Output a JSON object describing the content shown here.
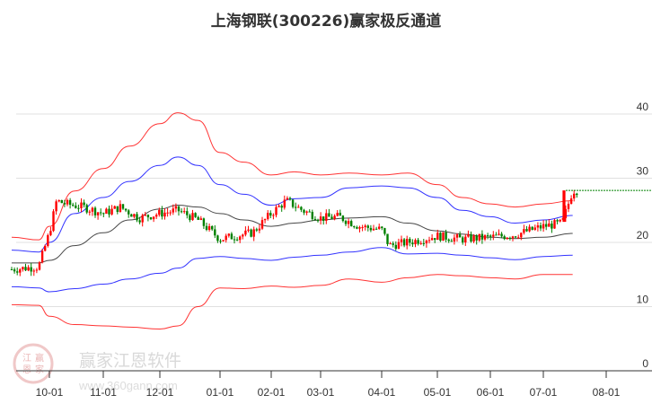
{
  "title": "上海钢联(300226)赢家极反通道",
  "watermark": {
    "brand": "赢家江恩软件",
    "url": "www.360gann.com",
    "seal": [
      "江",
      "赢",
      "恩",
      "家"
    ]
  },
  "colors": {
    "up": "#ff0000",
    "down": "#008000",
    "upper_outer": "#ff0000",
    "upper_inner": "#0000ff",
    "middle": "#333333",
    "lower_inner": "#0000ff",
    "lower_outer": "#ff0000",
    "grid": "#e0e0e0",
    "axis": "#333333",
    "last_price_line": "#008000"
  },
  "chart_data": {
    "type": "candlestick",
    "title": "上海钢联(300226)赢家极反通道",
    "xlabel": "",
    "ylabel": "",
    "ylim": [
      0,
      40
    ],
    "y_ticks": [
      0,
      10,
      20,
      30,
      40
    ],
    "x_tick_labels": [
      "10-01",
      "11-01",
      "12-01",
      "01-01",
      "02-01",
      "03-01",
      "04-01",
      "05-01",
      "06-01",
      "07-01",
      "08-01"
    ],
    "grid": true,
    "legend": "none",
    "last_price": 28.1,
    "series": [
      {
        "name": "upper_outer_band",
        "color": "#ff0000",
        "x": [
          "09-10",
          "09-25",
          "10-01",
          "10-15",
          "11-01",
          "11-15",
          "12-01",
          "12-10",
          "12-20",
          "01-01",
          "01-15",
          "02-01",
          "02-15",
          "03-01",
          "03-15",
          "04-01",
          "04-15",
          "05-01",
          "05-15",
          "06-01",
          "06-15",
          "07-01",
          "07-15"
        ],
        "values": [
          20.8,
          20.4,
          22.5,
          28.0,
          31.5,
          35.0,
          38.5,
          40.2,
          39.0,
          34.0,
          32.5,
          30.5,
          31.0,
          30.5,
          30.8,
          30.5,
          30.8,
          29.0,
          27.0,
          26.0,
          25.5,
          26.0,
          26.5
        ]
      },
      {
        "name": "upper_inner_band",
        "color": "#0000ff",
        "x": [
          "09-10",
          "09-25",
          "10-01",
          "10-15",
          "11-01",
          "11-15",
          "12-01",
          "12-10",
          "12-20",
          "01-01",
          "01-15",
          "02-01",
          "02-15",
          "03-01",
          "03-15",
          "04-01",
          "04-15",
          "05-01",
          "05-15",
          "06-01",
          "06-15",
          "07-01",
          "07-15"
        ],
        "values": [
          18.8,
          18.5,
          20.0,
          24.5,
          27.0,
          29.5,
          32.0,
          33.3,
          32.0,
          29.0,
          27.5,
          25.8,
          26.8,
          27.0,
          28.5,
          28.8,
          28.5,
          27.0,
          25.0,
          24.0,
          23.0,
          23.5,
          24.2
        ]
      },
      {
        "name": "middle_line",
        "color": "#333333",
        "x": [
          "09-10",
          "09-25",
          "10-01",
          "10-15",
          "11-01",
          "11-15",
          "12-01",
          "12-10",
          "12-20",
          "01-01",
          "01-15",
          "02-01",
          "02-15",
          "03-01",
          "03-15",
          "04-01",
          "04-15",
          "05-01",
          "05-15",
          "06-01",
          "06-15",
          "07-01",
          "07-15"
        ],
        "values": [
          16.8,
          16.8,
          17.2,
          19.5,
          21.5,
          23.5,
          25.2,
          25.8,
          25.5,
          24.5,
          23.5,
          22.5,
          23.0,
          23.5,
          23.8,
          24.0,
          23.0,
          21.8,
          21.3,
          20.8,
          20.6,
          20.8,
          21.4
        ]
      },
      {
        "name": "lower_inner_band",
        "color": "#0000ff",
        "x": [
          "09-10",
          "09-25",
          "10-01",
          "10-15",
          "11-01",
          "11-15",
          "12-01",
          "12-10",
          "12-20",
          "01-01",
          "01-15",
          "02-01",
          "02-15",
          "03-01",
          "03-15",
          "04-01",
          "04-15",
          "05-01",
          "05-15",
          "06-01",
          "06-15",
          "07-01",
          "07-15"
        ],
        "values": [
          13.1,
          12.9,
          12.3,
          12.8,
          13.5,
          14.3,
          15.2,
          16.0,
          17.5,
          17.8,
          17.5,
          17.2,
          17.7,
          18.0,
          18.5,
          19.2,
          18.2,
          18.3,
          18.0,
          17.6,
          17.3,
          17.8,
          18.0
        ]
      },
      {
        "name": "lower_outer_band",
        "color": "#ff0000",
        "x": [
          "09-10",
          "09-25",
          "10-01",
          "10-15",
          "11-01",
          "11-15",
          "12-01",
          "12-10",
          "12-20",
          "01-01",
          "01-15",
          "02-01",
          "02-15",
          "03-01",
          "03-15",
          "04-01",
          "04-15",
          "05-01",
          "05-15",
          "06-01",
          "06-15",
          "07-01",
          "07-15"
        ],
        "values": [
          10.3,
          10.2,
          8.5,
          7.2,
          7.0,
          6.8,
          6.5,
          7.0,
          10.0,
          12.9,
          12.8,
          13.2,
          13.0,
          13.3,
          14.3,
          13.8,
          14.5,
          15.0,
          14.8,
          14.5,
          14.3,
          15.0,
          15.0
        ]
      },
      {
        "name": "price_close",
        "color": "#ff0000",
        "x": [
          "09-10",
          "09-25",
          "10-01",
          "10-05",
          "10-10",
          "10-20",
          "11-01",
          "11-10",
          "11-20",
          "12-01",
          "12-10",
          "12-20",
          "01-01",
          "01-10",
          "01-20",
          "02-01",
          "02-10",
          "02-20",
          "03-01",
          "03-10",
          "03-20",
          "04-01",
          "04-05",
          "04-15",
          "05-01",
          "05-15",
          "06-01",
          "06-15",
          "07-01",
          "07-10",
          "07-15"
        ],
        "values": [
          15.8,
          16.2,
          21.5,
          26.5,
          26.0,
          25.5,
          24.5,
          25.5,
          23.8,
          24.5,
          25.0,
          23.5,
          20.5,
          21.0,
          21.5,
          24.5,
          26.5,
          25.0,
          23.8,
          24.0,
          22.5,
          22.0,
          19.5,
          20.0,
          21.0,
          20.5,
          20.8,
          21.2,
          22.5,
          23.0,
          28.1
        ]
      }
    ]
  }
}
